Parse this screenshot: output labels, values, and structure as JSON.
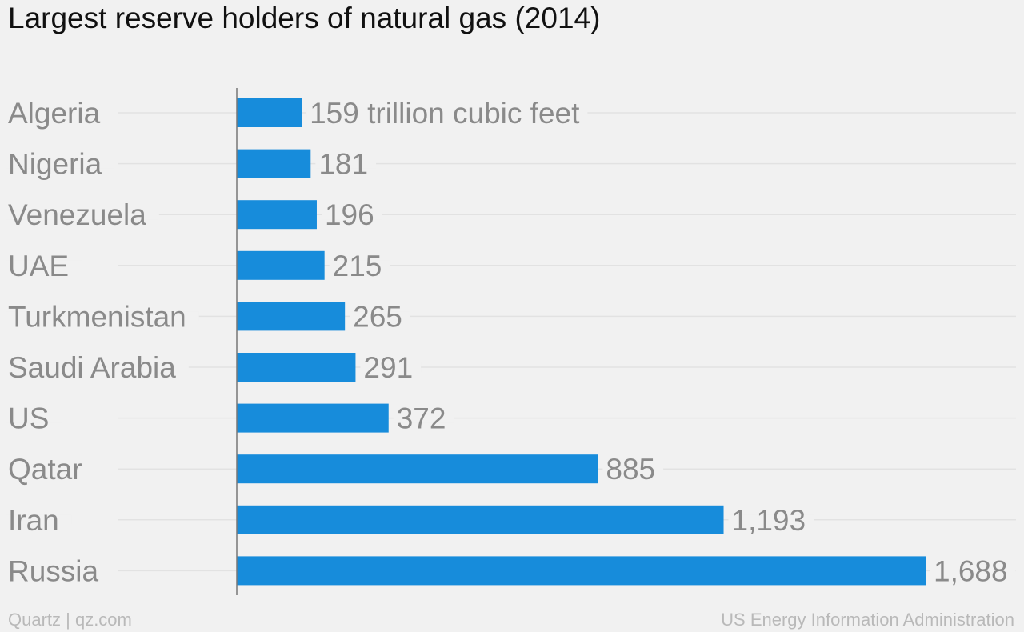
{
  "title": "Largest reserve holders of natural gas (2014)",
  "footer": {
    "left": "Quartz | qz.com",
    "right": "US Energy Information Administration"
  },
  "colors": {
    "bar": "#178cdb",
    "label": "#8a8a8a",
    "grid": "#e2e2e2",
    "axis": "#777777",
    "background": "#f1f1f1"
  },
  "chart_data": {
    "type": "bar",
    "orientation": "horizontal",
    "title": "Largest reserve holders of natural gas (2014)",
    "unit": "trillion cubic feet",
    "categories": [
      "Algeria",
      "Nigeria",
      "Venezuela",
      "UAE",
      "Turkmenistan",
      "Saudi Arabia",
      "US",
      "Qatar",
      "Iran",
      "Russia"
    ],
    "values": [
      159,
      181,
      196,
      215,
      265,
      291,
      372,
      885,
      1193,
      1688
    ],
    "data_labels": [
      "159 trillion cubic feet",
      "181",
      "196",
      "215",
      "265",
      "291",
      "372",
      "885",
      "1,193",
      "1,688"
    ],
    "xlim": [
      0,
      1688
    ],
    "grid": true,
    "legend": "none"
  }
}
